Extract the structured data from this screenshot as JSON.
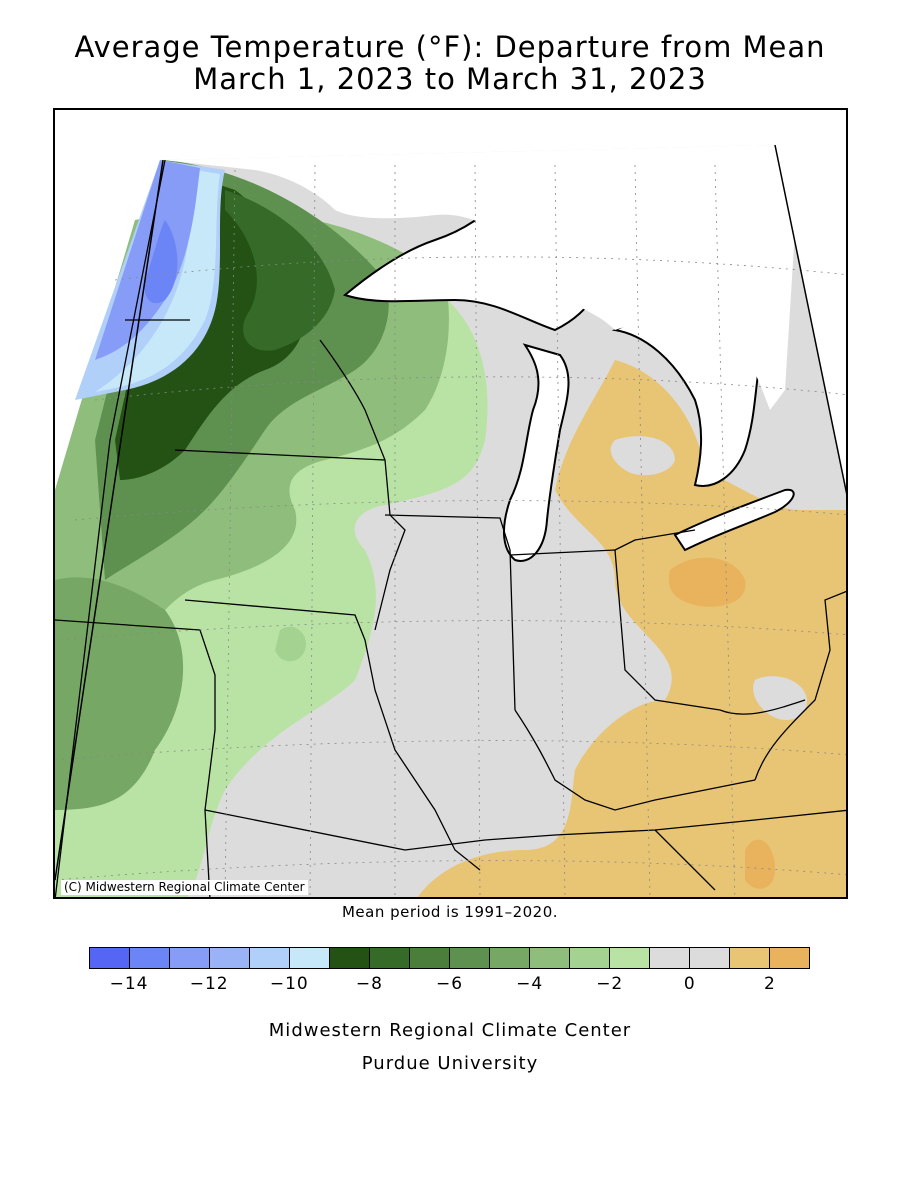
{
  "header": {
    "title_line1": "Average Temperature (°F): Departure from Mean",
    "title_line2": "March 1, 2023 to March 31, 2023"
  },
  "map": {
    "copyright": "(C) Midwestern Regional Climate Center",
    "regions": [
      {
        "name": "blue-west",
        "value_class": "-12"
      },
      {
        "name": "dark-green-north",
        "value_class": "-8"
      },
      {
        "name": "green-central",
        "value_class": "-4"
      },
      {
        "name": "light-green",
        "value_class": "-2"
      },
      {
        "name": "gray-neutral",
        "value_class": "0"
      },
      {
        "name": "tan-east",
        "value_class": "2"
      }
    ]
  },
  "mean_period": "Mean period is 1991–2020.",
  "legend": {
    "colors": [
      "#5566f5",
      "#6c85f6",
      "#869cf6",
      "#9ab3f7",
      "#b0cff9",
      "#c7e8f9",
      "#235214",
      "#356a28",
      "#4a7e3a",
      "#5e9150",
      "#76a765",
      "#8fbd7b",
      "#a4d391",
      "#b8e3a4",
      "#dcdcdc",
      "#dcdcdc",
      "#e8c574",
      "#e8b35c"
    ],
    "ticks": [
      {
        "label": "−14",
        "index": 1
      },
      {
        "label": "−12",
        "index": 3
      },
      {
        "label": "−10",
        "index": 5
      },
      {
        "label": "−8",
        "index": 7
      },
      {
        "label": "−6",
        "index": 9
      },
      {
        "label": "−4",
        "index": 11
      },
      {
        "label": "−2",
        "index": 13
      },
      {
        "label": "0",
        "index": 15
      },
      {
        "label": "2",
        "index": 17
      }
    ]
  },
  "footer": {
    "line1": "Midwestern Regional Climate Center",
    "line2": "Purdue University"
  }
}
